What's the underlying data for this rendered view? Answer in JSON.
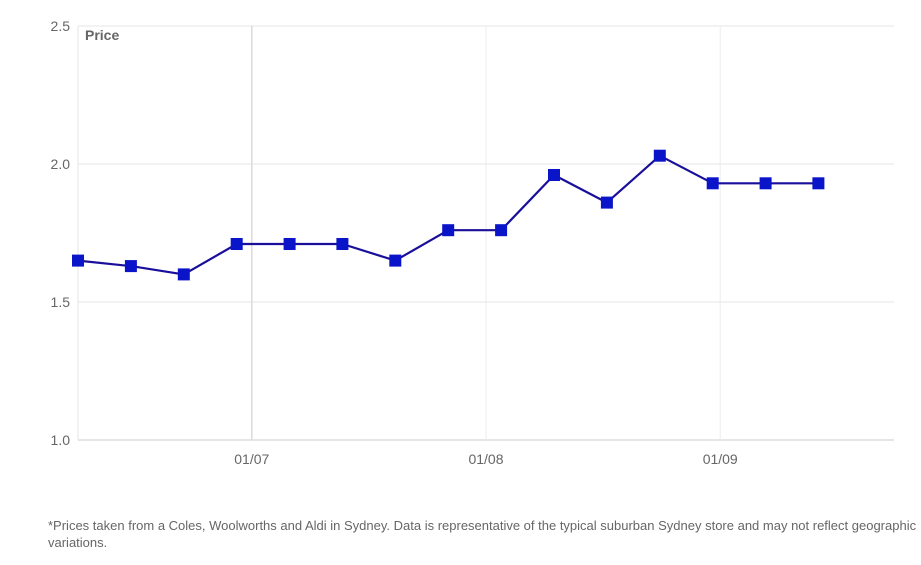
{
  "chart_data": {
    "type": "line",
    "ylabel": "Price",
    "ylim": [
      1.0,
      2.5
    ],
    "yticks": [
      1.0,
      1.5,
      2.0,
      2.5
    ],
    "ytick_labels": [
      "1.0",
      "1.5",
      "2.0",
      "2.5"
    ],
    "xlim": [
      "2024-06-08",
      "2024-09-24"
    ],
    "xticks": [
      "2024-07-01",
      "2024-08-01",
      "2024-09-01"
    ],
    "xtick_labels": [
      "01/07",
      "01/08",
      "01/09"
    ],
    "grid": true,
    "series": [
      {
        "color": "#0a14c8",
        "line_color": "#1a0f9a",
        "marker": "square",
        "x": [
          "2024-06-08",
          "2024-06-15",
          "2024-06-22",
          "2024-06-29",
          "2024-07-06",
          "2024-07-13",
          "2024-07-20",
          "2024-07-27",
          "2024-08-03",
          "2024-08-10",
          "2024-08-17",
          "2024-08-24",
          "2024-08-31",
          "2024-09-07",
          "2024-09-14"
        ],
        "values": [
          1.65,
          1.63,
          1.6,
          1.71,
          1.71,
          1.71,
          1.65,
          1.76,
          1.76,
          1.96,
          1.86,
          2.03,
          1.93,
          1.93,
          1.93
        ]
      }
    ]
  },
  "footnote": "*Prices taken from a Coles, Woolworths and Aldi in Sydney. Data is representative of the typical suburban Sydney store and may not reflect geographic variations."
}
